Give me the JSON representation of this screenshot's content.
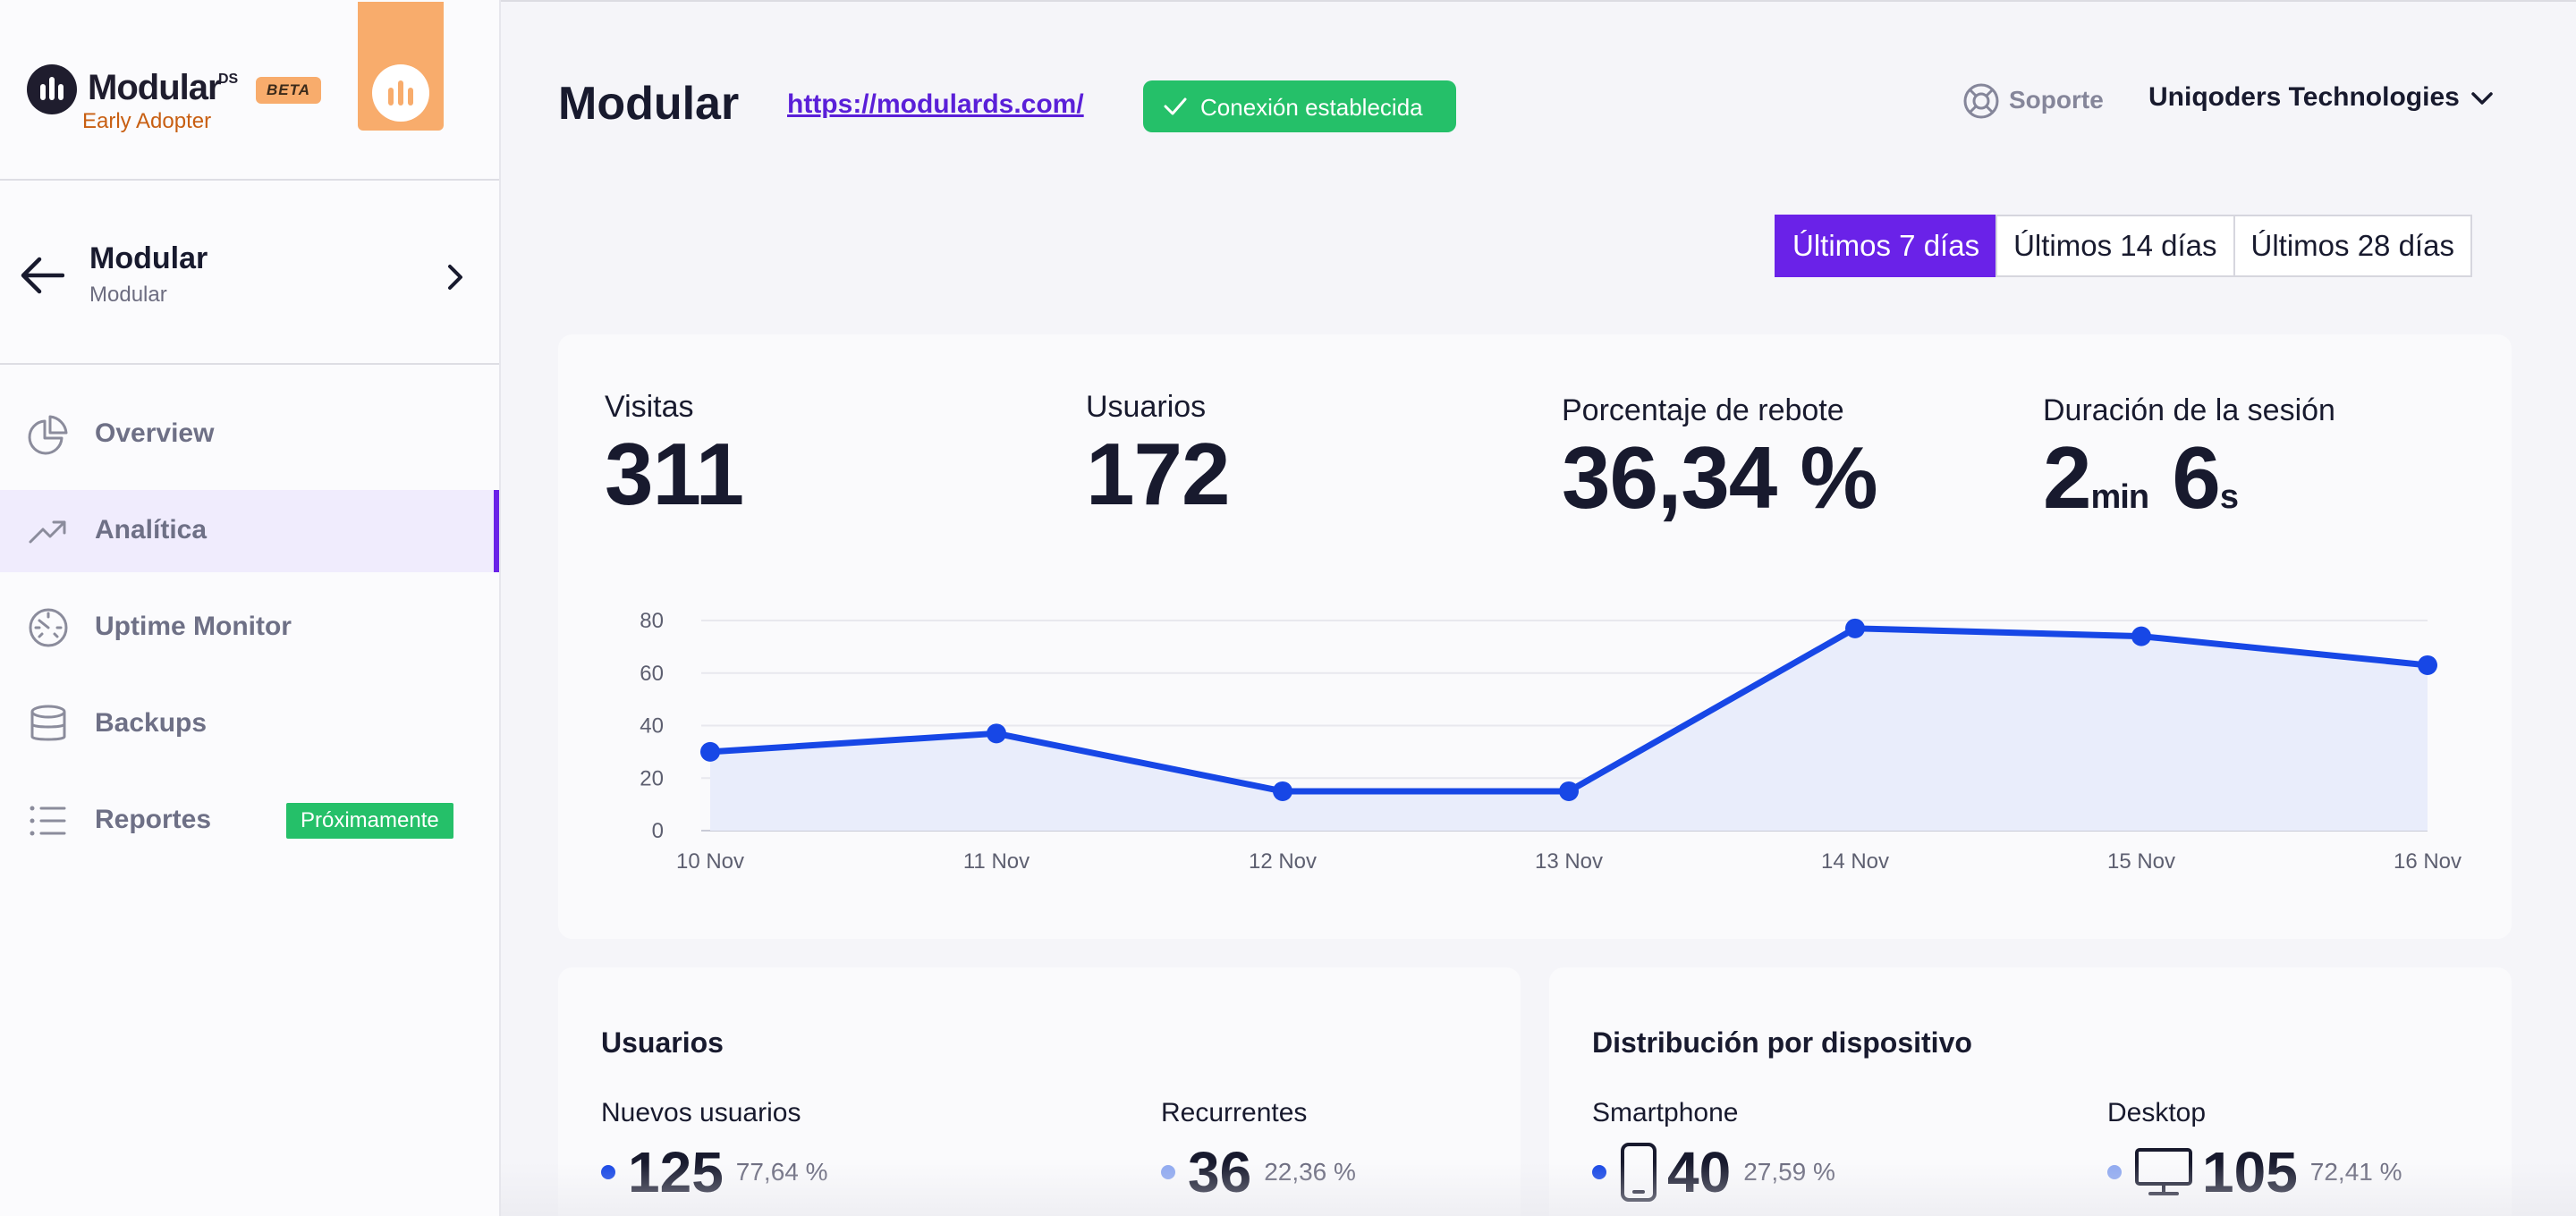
{
  "brand": {
    "name": "Modular",
    "suffix": "DS",
    "badge": "BETA",
    "tagline": "Early Adopter"
  },
  "site_switcher": {
    "title": "Modular",
    "subtitle": "Modular"
  },
  "nav": [
    {
      "label": "Overview",
      "icon": "pie-chart-icon",
      "active": false
    },
    {
      "label": "Analítica",
      "icon": "trend-up-icon",
      "active": true
    },
    {
      "label": "Uptime Monitor",
      "icon": "gauge-icon",
      "active": false
    },
    {
      "label": "Backups",
      "icon": "database-icon",
      "active": false
    },
    {
      "label": "Reportes",
      "icon": "list-icon",
      "active": false,
      "badge": "Próximamente"
    }
  ],
  "header": {
    "title": "Modular",
    "site_url": "https://modulards.com/",
    "connection_status": "Conexión establecida",
    "support_label": "Soporte",
    "organization": "Uniqoders Technologies"
  },
  "date_ranges": {
    "options": [
      "Últimos 7 días",
      "Últimos 14 días",
      "Últimos 28 días"
    ],
    "selected": "Últimos 7 días"
  },
  "metrics": {
    "visits": {
      "label": "Visitas",
      "value": "311"
    },
    "users": {
      "label": "Usuarios",
      "value": "172"
    },
    "bounce": {
      "label": "Porcentaje de rebote",
      "value": "36,34 %"
    },
    "session": {
      "label": "Duración de la sesión",
      "minutes": "2",
      "minutes_unit": "min",
      "seconds": "6",
      "seconds_unit": "s"
    }
  },
  "chart_data": {
    "type": "area",
    "x": [
      "10 Nov",
      "11 Nov",
      "12 Nov",
      "13 Nov",
      "14 Nov",
      "15 Nov",
      "16 Nov"
    ],
    "series": [
      {
        "values": [
          30,
          37,
          15,
          15,
          77,
          74,
          63
        ]
      }
    ],
    "ylim": [
      0,
      80
    ],
    "yticks": [
      0,
      20,
      40,
      60,
      80
    ],
    "grid": true,
    "colors": {
      "line": "#1747e6",
      "fill": "#e9edfb"
    }
  },
  "users_card": {
    "title": "Usuarios",
    "new": {
      "label": "Nuevos usuarios",
      "value": "125",
      "pct": "77,64 %",
      "color": "#1747e6"
    },
    "returning": {
      "label": "Recurrentes",
      "value": "36",
      "pct": "22,36 %",
      "color": "#8fa9f0"
    }
  },
  "device_card": {
    "title": "Distribución por dispositivo",
    "smartphone": {
      "label": "Smartphone",
      "value": "40",
      "pct": "27,59 %",
      "color": "#1747e6",
      "icon": "smartphone-icon"
    },
    "desktop": {
      "label": "Desktop",
      "value": "105",
      "pct": "72,41 %",
      "color": "#8fa9f0",
      "icon": "monitor-icon"
    }
  },
  "colors": {
    "accent": "#6a22e8",
    "success": "#25c069",
    "brand_orange": "#f8ac6c"
  }
}
